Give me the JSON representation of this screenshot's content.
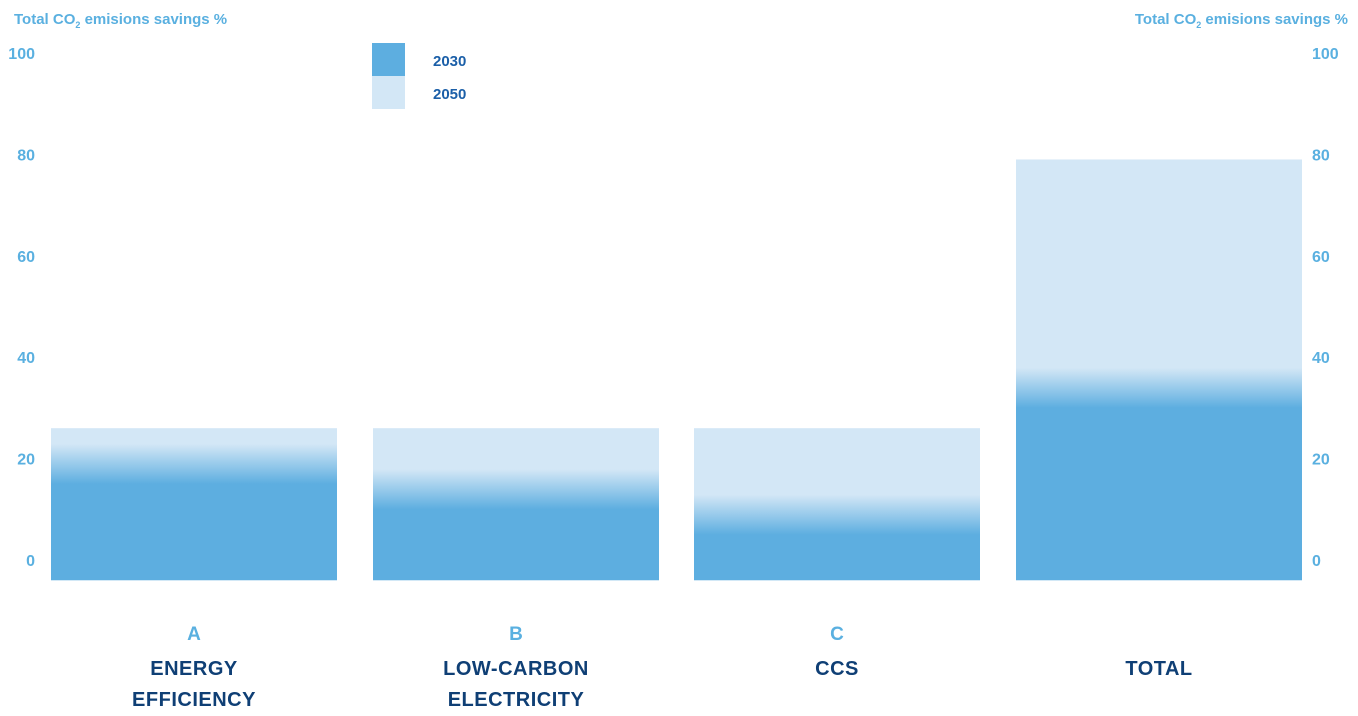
{
  "axis_title_left": {
    "prefix": "Total CO",
    "sub": "2",
    "suffix": " emisions savings %"
  },
  "axis_title_right": {
    "prefix": "Total CO",
    "sub": "2",
    "suffix": " emisions savings %"
  },
  "categories": [
    {
      "letter": "A",
      "name_line1": "ENERGY",
      "name_line2": "EFFICIENCY"
    },
    {
      "letter": "B",
      "name_line1": "LOW-CARBON",
      "name_line2": "ELECTRICITY"
    },
    {
      "letter": "C",
      "name_line1": "CCS",
      "name_line2": ""
    },
    {
      "letter": "",
      "name_line1": "TOTAL",
      "name_line2": ""
    }
  ],
  "colors": {
    "c2030": "#5daee0",
    "c2050": "#d3e7f6",
    "axis": "#5ab0e0",
    "legend_text": "#1b5fa8",
    "category_name": "#0f3f75"
  },
  "chart_data": {
    "type": "bar",
    "stacked_gradient": true,
    "categories": [
      "A ENERGY EFFICIENCY",
      "B LOW-CARBON ELECTRICITY",
      "C CCS",
      "TOTAL"
    ],
    "series": [
      {
        "name": "2030",
        "values": [
          15,
          10,
          5,
          30
        ]
      },
      {
        "name": "2050",
        "values": [
          26,
          26,
          26,
          79
        ]
      }
    ],
    "y_ticks": [
      0,
      20,
      40,
      60,
      80,
      100
    ],
    "ylim": [
      -4,
      100
    ],
    "ylabel": "Total CO2 emisions savings %",
    "legend_position": "top-left",
    "grid": false
  }
}
